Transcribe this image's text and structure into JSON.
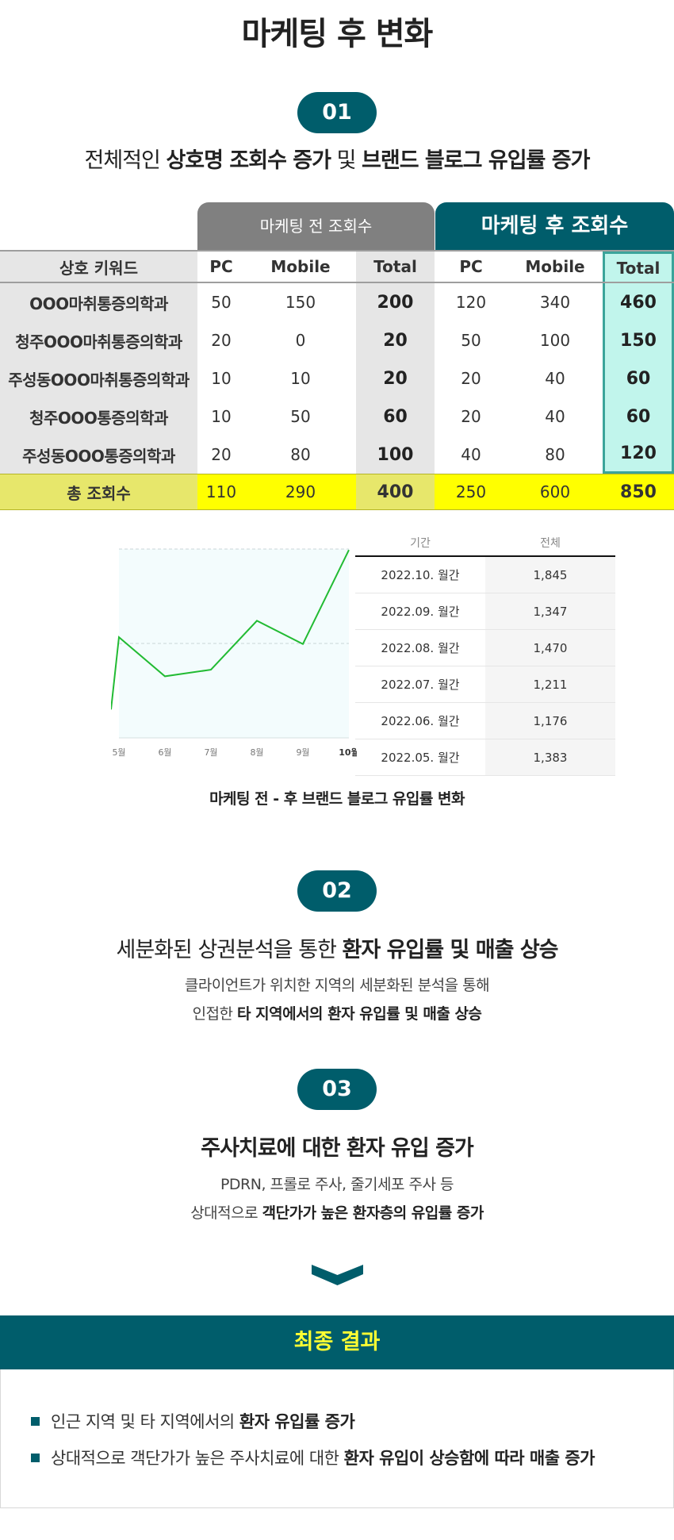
{
  "title": "마케팅 후 변화",
  "step1": {
    "badge": "01",
    "heading_pre": "전체적인 ",
    "heading_bold1": "상호명 조회수 증가",
    "heading_mid": " 및 ",
    "heading_bold2": "브랜드 블로그 유입률 증가"
  },
  "table": {
    "group_before": "마케팅 전 조회수",
    "group_after": "마케팅 후 조회수",
    "headers": [
      "상호 키워드",
      "PC",
      "Mobile",
      "Total",
      "PC",
      "Mobile",
      "Total"
    ],
    "rows": [
      [
        "OOO마취통증의학과",
        "50",
        "150",
        "200",
        "120",
        "340",
        "460"
      ],
      [
        "청주OOO마취통증의학과",
        "20",
        "0",
        "20",
        "50",
        "100",
        "150"
      ],
      [
        "주성동OOO마취통증의학과",
        "10",
        "10",
        "20",
        "20",
        "40",
        "60"
      ],
      [
        "청주OOO통증의학과",
        "10",
        "50",
        "60",
        "20",
        "40",
        "60"
      ],
      [
        "주성동OOO통증의학과",
        "20",
        "80",
        "100",
        "40",
        "80",
        "120"
      ]
    ],
    "total": [
      "총 조회수",
      "110",
      "290",
      "400",
      "250",
      "600",
      "850"
    ]
  },
  "chart_data": {
    "type": "line",
    "x": [
      "5월",
      "6월",
      "7월",
      "8월",
      "9월",
      "10월"
    ],
    "values": [
      1383,
      1176,
      1211,
      1470,
      1347,
      1845
    ],
    "ylim": [
      850,
      1850
    ],
    "grid": true,
    "line_color": "#22bb33",
    "highlight_last_tick": true
  },
  "stats": {
    "col_period": "기간",
    "col_total": "전체",
    "rows": [
      {
        "period": "2022.10. 월간",
        "total": "1,845"
      },
      {
        "period": "2022.09. 월간",
        "total": "1,347"
      },
      {
        "period": "2022.08. 월간",
        "total": "1,470"
      },
      {
        "period": "2022.07. 월간",
        "total": "1,211"
      },
      {
        "period": "2022.06. 월간",
        "total": "1,176"
      },
      {
        "period": "2022.05. 월간",
        "total": "1,383"
      }
    ]
  },
  "chart_caption": "마케팅 전 - 후 브랜드 블로그 유입률 변화",
  "step2": {
    "badge": "02",
    "heading_pre": "세분화된 상권분석을 통한 ",
    "heading_bold": "환자 유입률 및 매출 상승",
    "desc1": "클라이언트가 위치한 지역의 세분화된 분석을 통해",
    "desc2_pre": "인접한 ",
    "desc2_bold": "타 지역에서의 환자 유입률 및 매출 상승"
  },
  "step3": {
    "badge": "03",
    "heading_bold": "주사치료에 대한 환자 유입 증가",
    "desc1": "PDRN, 프롤로 주사, 줄기세포 주사 등",
    "desc2_pre": "상대적으로 ",
    "desc2_bold": "객단가가 높은 환자층의 유입률 증가"
  },
  "result": {
    "title": "최종 결과",
    "item1_pre": "인근 지역 및 타 지역에서의 ",
    "item1_bold": "환자 유입률 증가",
    "item2_pre": "상대적으로 객단가가 높은 주사치료에 대한 ",
    "item2_bold": "환자 유입이 상승함에 따라 매출 증가"
  },
  "colors": {
    "accent": "#005d6b",
    "highlight_yellow": "#ffff00",
    "result_title": "#ffff33",
    "after_total_bg": "#c1f5ec"
  }
}
